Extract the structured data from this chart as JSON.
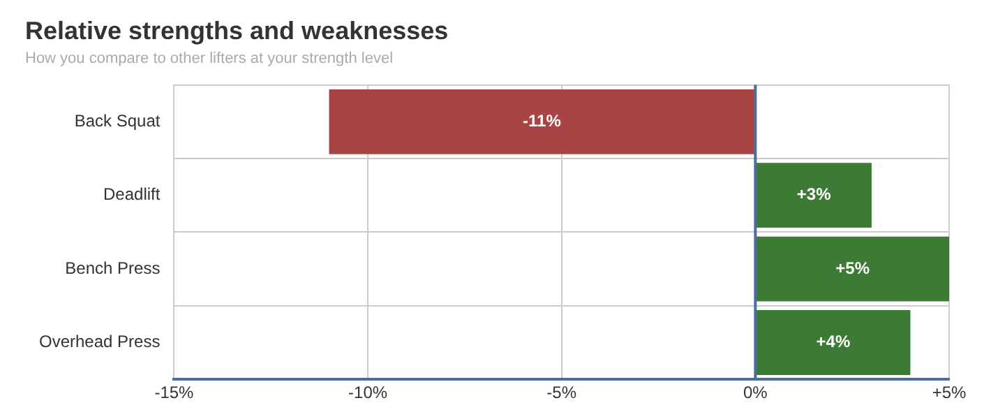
{
  "chart_data": {
    "type": "bar",
    "orientation": "horizontal",
    "title": "Relative strengths and weaknesses",
    "subtitle": "How you compare to other lifters at your strength level",
    "categories": [
      "Back Squat",
      "Deadlift",
      "Bench Press",
      "Overhead Press"
    ],
    "values": [
      -11,
      3,
      5,
      4
    ],
    "colors": [
      "#a84444",
      "#3d7a35",
      "#3d7a35",
      "#3d7a35"
    ],
    "value_labels": [
      "-11%",
      "+3%",
      "+5%",
      "+4%"
    ],
    "xlim": [
      -15,
      5
    ],
    "xticks": [
      {
        "value": -15,
        "label": "-15%"
      },
      {
        "value": -10,
        "label": "-10%"
      },
      {
        "value": -5,
        "label": "-5%"
      },
      {
        "value": 0,
        "label": "0%"
      },
      {
        "value": 5,
        "label": "+5%"
      }
    ],
    "ref_lines": [
      {
        "axis": "x",
        "value": 0,
        "color": "#4a6f9e"
      }
    ],
    "grid": true,
    "legend": false
  }
}
